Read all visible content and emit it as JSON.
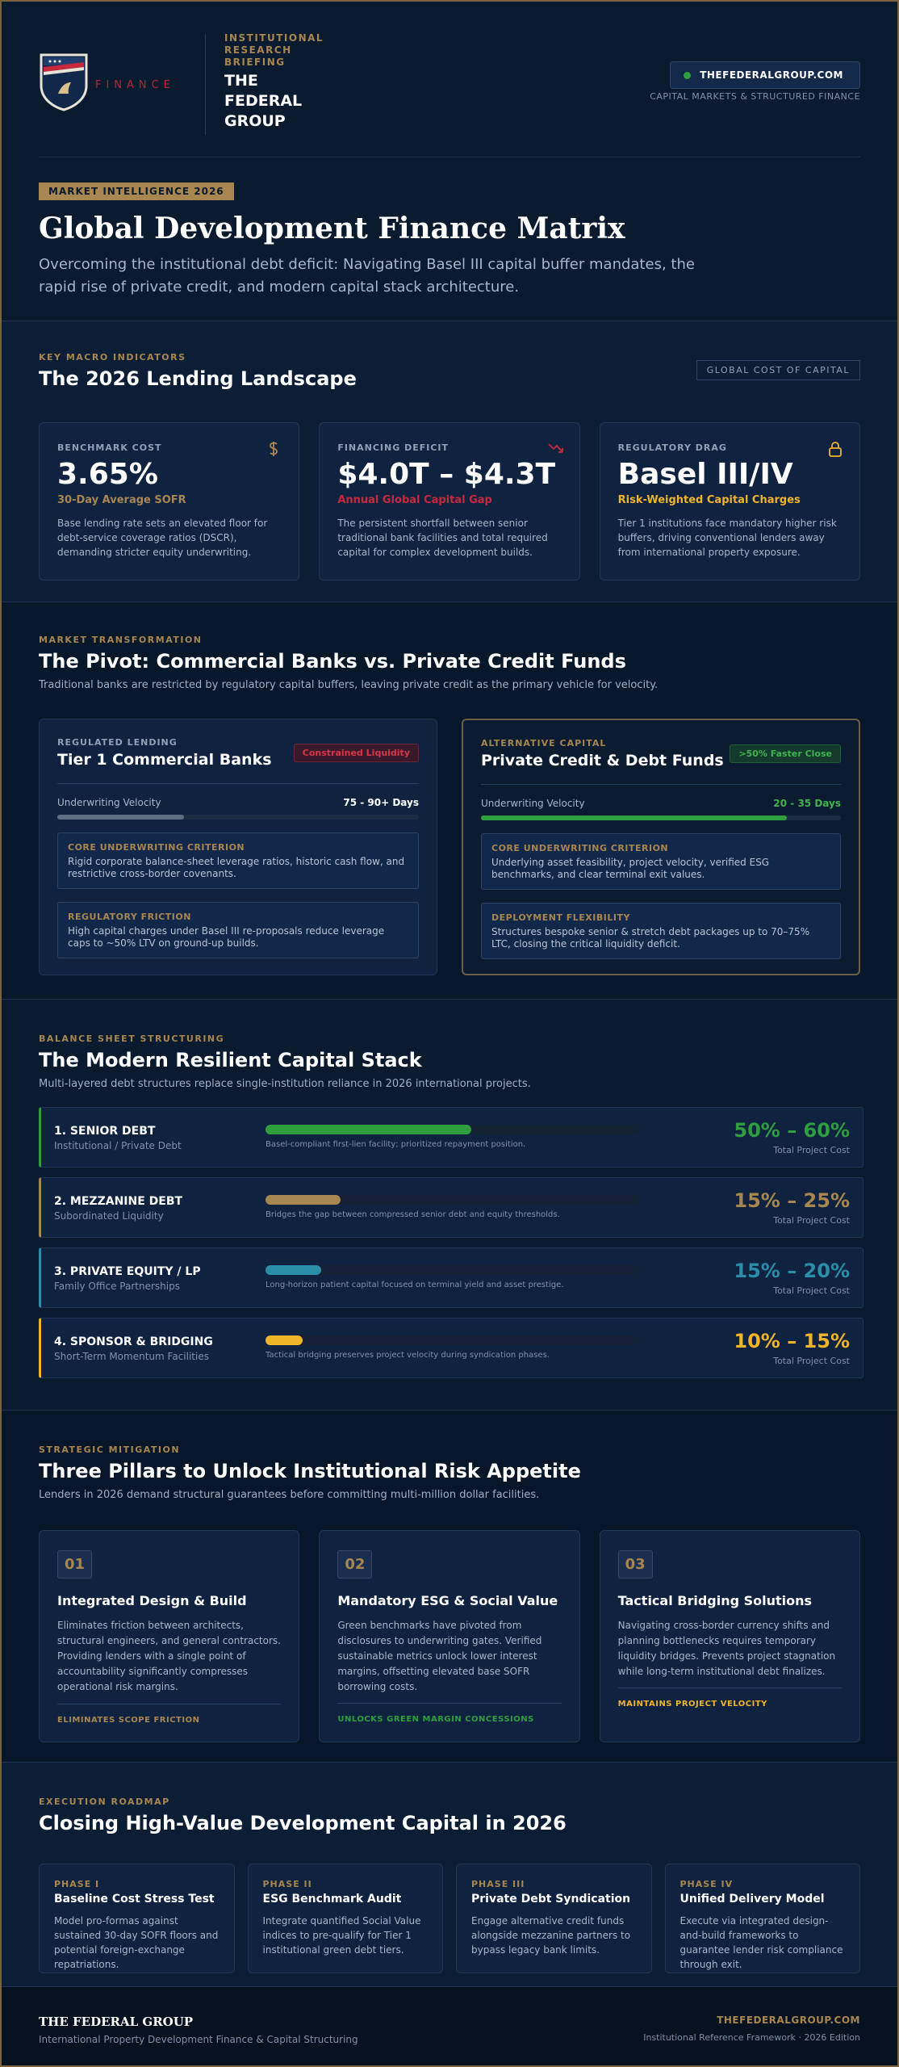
{
  "header": {
    "logo_text": "FINANCE",
    "briefing_label": "INSTITUTIONAL RESEARCH BRIEFING",
    "brand": "THE FEDERAL GROUP",
    "website": "THEFEDERALGROUP.COM",
    "tagline": "CAPITAL MARKETS & STRUCTURED FINANCE"
  },
  "hero": {
    "badge": "MARKET INTELLIGENCE 2026",
    "title": "Global Development Finance Matrix",
    "subtitle": "Overcoming the institutional debt deficit: Navigating Basel III capital buffer mandates, the rapid rise of private credit, and modern capital stack architecture."
  },
  "landscape": {
    "eyebrow": "KEY MACRO INDICATORS",
    "title": "The 2026 Lending Landscape",
    "tag": "GLOBAL COST OF CAPITAL",
    "cards": [
      {
        "label": "BENCHMARK COST",
        "value": "3.65%",
        "sub": "30-Day Average SOFR",
        "text": "Base lending rate sets an elevated floor for debt-service coverage ratios (DSCR), demanding stricter equity underwriting."
      },
      {
        "label": "FINANCING DEFICIT",
        "value": "$4.0T – $4.3T",
        "sub": "Annual Global Capital Gap",
        "text": "The persistent shortfall between senior traditional bank facilities and total required capital for complex development builds."
      },
      {
        "label": "REGULATORY DRAG",
        "value": "Basel III/IV",
        "sub": "Risk-Weighted Capital Charges",
        "text": "Tier 1 institutions face mandatory higher risk buffers, driving conventional lenders away from international property exposure."
      }
    ]
  },
  "pivot": {
    "eyebrow": "MARKET TRANSFORMATION",
    "title": "The Pivot: Commercial Banks vs. Private Credit Funds",
    "subtitle": "Traditional banks are restricted by regulatory capital buffers, leaving private credit as the primary vehicle for velocity.",
    "cards": [
      {
        "eyebrow": "REGULATED LENDING",
        "title": "Tier 1 Commercial Banks",
        "badge": "Constrained Liquidity",
        "velocity_label": "Underwriting Velocity",
        "velocity_value": "75 - 90+ Days",
        "blocks": [
          {
            "title": "CORE UNDERWRITING CRITERION",
            "text": "Rigid corporate balance-sheet leverage ratios, historic cash flow, and restrictive cross-border covenants."
          },
          {
            "title": "REGULATORY FRICTION",
            "text": "High capital charges under Basel III re-proposals reduce leverage caps to ~50% LTV on ground-up builds."
          }
        ]
      },
      {
        "eyebrow": "ALTERNATIVE CAPITAL",
        "title": "Private Credit & Debt Funds",
        "badge": ">50% Faster Close",
        "velocity_label": "Underwriting Velocity",
        "velocity_value": "20 - 35 Days",
        "blocks": [
          {
            "title": "CORE UNDERWRITING CRITERION",
            "text": "Underlying asset feasibility, project velocity, verified ESG benchmarks, and clear terminal exit values."
          },
          {
            "title": "DEPLOYMENT FLEXIBILITY",
            "text": "Structures bespoke senior & stretch debt packages up to 70–75% LTC, closing the critical liquidity deficit."
          }
        ]
      }
    ]
  },
  "stack": {
    "eyebrow": "BALANCE SHEET STRUCTURING",
    "title": "The Modern Resilient Capital Stack",
    "subtitle": "Multi-layered debt structures replace single-institution reliance in 2026 international projects.",
    "tiers": [
      {
        "name": "1. SENIOR DEBT",
        "sub": "Institutional / Private Debt",
        "note": "Basel-compliant first-lien facility; prioritized repayment position.",
        "share": "50% – 60%",
        "share_label": "Total Project Cost"
      },
      {
        "name": "2. MEZZANINE DEBT",
        "sub": "Subordinated Liquidity",
        "note": "Bridges the gap between compressed senior debt and equity thresholds.",
        "share": "15% – 25%",
        "share_label": "Total Project Cost"
      },
      {
        "name": "3. PRIVATE EQUITY / LP",
        "sub": "Family Office Partnerships",
        "note": "Long-horizon patient capital focused on terminal yield and asset prestige.",
        "share": "15% – 20%",
        "share_label": "Total Project Cost"
      },
      {
        "name": "4. SPONSOR & BRIDGING",
        "sub": "Short-Term Momentum Facilities",
        "note": "Tactical bridging preserves project velocity during syndication phases.",
        "share": "10% – 15%",
        "share_label": "Total Project Cost"
      }
    ]
  },
  "pillars": {
    "eyebrow": "STRATEGIC MITIGATION",
    "title": "Three Pillars to Unlock Institutional Risk Appetite",
    "subtitle": "Lenders in 2026 demand structural guarantees before committing multi-million dollar facilities.",
    "items": [
      {
        "number": "01",
        "title": "Integrated Design & Build",
        "text": "Eliminates friction between architects, structural engineers, and general contractors. Providing lenders with a single point of accountability significantly compresses operational risk margins.",
        "footer": "ELIMINATES SCOPE FRICTION"
      },
      {
        "number": "02",
        "title": "Mandatory ESG & Social Value",
        "text": "Green benchmarks have pivoted from disclosures to underwriting gates. Verified sustainable metrics unlock lower interest margins, offsetting elevated base SOFR borrowing costs.",
        "footer": "UNLOCKS GREEN MARGIN CONCESSIONS"
      },
      {
        "number": "03",
        "title": "Tactical Bridging Solutions",
        "text": "Navigating cross-border currency shifts and planning bottlenecks requires temporary liquidity bridges. Prevents project stagnation while long-term institutional debt finalizes.",
        "footer": "MAINTAINS PROJECT VELOCITY"
      }
    ]
  },
  "roadmap": {
    "eyebrow": "EXECUTION ROADMAP",
    "title": "Closing High-Value Development Capital in 2026",
    "phases": [
      {
        "phase": "PHASE I",
        "title": "Baseline Cost Stress Test",
        "text": "Model pro-formas against sustained 30-day SOFR floors and potential foreign-exchange repatriations."
      },
      {
        "phase": "PHASE II",
        "title": "ESG Benchmark Audit",
        "text": "Integrate quantified Social Value indices to pre-qualify for Tier 1 institutional green debt tiers."
      },
      {
        "phase": "PHASE III",
        "title": "Private Debt Syndication",
        "text": "Engage alternative credit funds alongside mezzanine partners to bypass legacy bank limits."
      },
      {
        "phase": "PHASE IV",
        "title": "Unified Delivery Model",
        "text": "Execute via integrated design-and-build frameworks to guarantee lender risk compliance through exit."
      }
    ]
  },
  "footer": {
    "brand": "THE FEDERAL GROUP",
    "subtitle": "International Property Development Finance & Capital Structuring",
    "website": "THEFEDERALGROUP.COM",
    "edition": "Institutional Reference Framework · 2026 Edition"
  }
}
